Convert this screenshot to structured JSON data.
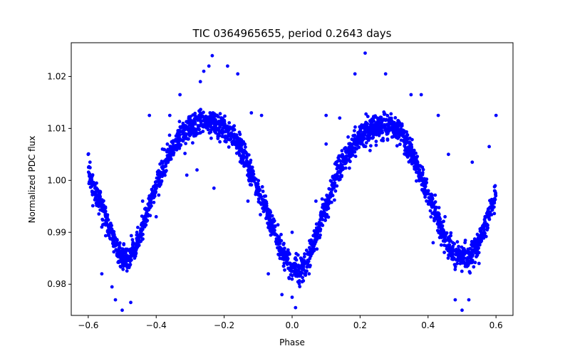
{
  "chart_data": {
    "type": "scatter",
    "title": "TIC 0364965655, period 0.2643 days",
    "xlabel": "Phase",
    "ylabel": "Normalized PDC flux",
    "xlim": [
      -0.65,
      0.65
    ],
    "ylim": [
      0.974,
      1.0265
    ],
    "x_ticks": [
      -0.6,
      -0.4,
      -0.2,
      0.0,
      0.2,
      0.4,
      0.6
    ],
    "x_tick_labels": [
      "−0.6",
      "−0.4",
      "−0.2",
      "0.0",
      "0.2",
      "0.4",
      "0.6"
    ],
    "y_ticks": [
      0.98,
      0.99,
      1.0,
      1.01,
      1.02
    ],
    "y_tick_labels": [
      "0.98",
      "0.99",
      "1.00",
      "1.01",
      "1.02"
    ],
    "grid": false,
    "series": [
      {
        "color": "#0000ff",
        "trend": [
          [
            -0.6,
            1.002
          ],
          [
            -0.58,
            0.998
          ],
          [
            -0.56,
            0.995
          ],
          [
            -0.54,
            0.991
          ],
          [
            -0.52,
            0.9875
          ],
          [
            -0.5,
            0.985
          ],
          [
            -0.48,
            0.985
          ],
          [
            -0.46,
            0.987
          ],
          [
            -0.44,
            0.991
          ],
          [
            -0.42,
            0.995
          ],
          [
            -0.4,
            0.999
          ],
          [
            -0.38,
            1.0025
          ],
          [
            -0.36,
            1.0055
          ],
          [
            -0.34,
            1.0075
          ],
          [
            -0.32,
            1.009
          ],
          [
            -0.3,
            1.01
          ],
          [
            -0.28,
            1.0105
          ],
          [
            -0.26,
            1.011
          ],
          [
            -0.24,
            1.011
          ],
          [
            -0.22,
            1.0105
          ],
          [
            -0.2,
            1.01
          ],
          [
            -0.18,
            1.009
          ],
          [
            -0.16,
            1.007
          ],
          [
            -0.14,
            1.0045
          ],
          [
            -0.12,
            1.001
          ],
          [
            -0.1,
            0.998
          ],
          [
            -0.08,
            0.995
          ],
          [
            -0.06,
            0.9915
          ],
          [
            -0.04,
            0.988
          ],
          [
            -0.02,
            0.985
          ],
          [
            0.0,
            0.9835
          ],
          [
            0.02,
            0.9825
          ],
          [
            0.04,
            0.9835
          ],
          [
            0.06,
            0.987
          ],
          [
            0.08,
            0.991
          ],
          [
            0.1,
            0.995
          ],
          [
            0.12,
            0.999
          ],
          [
            0.14,
            1.002
          ],
          [
            0.16,
            1.005
          ],
          [
            0.18,
            1.007
          ],
          [
            0.2,
            1.0085
          ],
          [
            0.22,
            1.0095
          ],
          [
            0.24,
            1.01
          ],
          [
            0.26,
            1.0105
          ],
          [
            0.28,
            1.0105
          ],
          [
            0.3,
            1.01
          ],
          [
            0.32,
            1.009
          ],
          [
            0.34,
            1.007
          ],
          [
            0.36,
            1.004
          ],
          [
            0.38,
            1.0005
          ],
          [
            0.4,
            0.997
          ],
          [
            0.42,
            0.994
          ],
          [
            0.44,
            0.9905
          ],
          [
            0.46,
            0.9875
          ],
          [
            0.48,
            0.9855
          ],
          [
            0.5,
            0.985
          ],
          [
            0.52,
            0.985
          ],
          [
            0.54,
            0.987
          ],
          [
            0.56,
            0.99
          ],
          [
            0.58,
            0.9935
          ],
          [
            0.6,
            0.997
          ]
        ],
        "scatter": [
          [
            -0.235,
            1.024
          ],
          [
            -0.245,
            1.022
          ],
          [
            -0.26,
            1.021
          ],
          [
            -0.19,
            1.022
          ],
          [
            -0.16,
            1.0205
          ],
          [
            -0.27,
            1.019
          ],
          [
            -0.33,
            1.0165
          ],
          [
            -0.36,
            1.0125
          ],
          [
            -0.42,
            1.0125
          ],
          [
            -0.12,
            1.013
          ],
          [
            -0.09,
            1.0125
          ],
          [
            -0.23,
            0.9985
          ],
          [
            -0.28,
            1.002
          ],
          [
            -0.31,
            1.001
          ],
          [
            -0.4,
            0.993
          ],
          [
            -0.47,
            0.987
          ],
          [
            -0.56,
            0.982
          ],
          [
            -0.53,
            0.9795
          ],
          [
            -0.52,
            0.977
          ],
          [
            -0.5,
            0.975
          ],
          [
            -0.475,
            0.9765
          ],
          [
            -0.07,
            0.982
          ],
          [
            -0.03,
            0.978
          ],
          [
            0.0,
            0.9775
          ],
          [
            0.01,
            0.9755
          ],
          [
            0.05,
            0.982
          ],
          [
            0.215,
            1.0245
          ],
          [
            0.185,
            1.0205
          ],
          [
            0.275,
            1.0205
          ],
          [
            0.35,
            1.0165
          ],
          [
            0.38,
            1.0165
          ],
          [
            0.1,
            1.0125
          ],
          [
            0.14,
            1.012
          ],
          [
            0.46,
            1.005
          ],
          [
            0.53,
            1.0035
          ],
          [
            0.6,
            1.0125
          ],
          [
            0.58,
            1.0065
          ],
          [
            0.45,
            0.993
          ],
          [
            0.47,
            0.986
          ],
          [
            0.55,
            0.984
          ],
          [
            0.52,
            0.977
          ],
          [
            0.48,
            0.977
          ],
          [
            0.5,
            0.975
          ],
          [
            0.415,
            0.988
          ],
          [
            0.43,
            1.0125
          ],
          [
            -0.44,
            0.996
          ],
          [
            0.07,
            0.996
          ],
          [
            -0.13,
            0.996
          ],
          [
            0.1,
            1.007
          ],
          [
            0.34,
            1.0045
          ],
          [
            0.0,
            0.99
          ],
          [
            -0.6,
            1.005
          ]
        ]
      }
    ]
  }
}
